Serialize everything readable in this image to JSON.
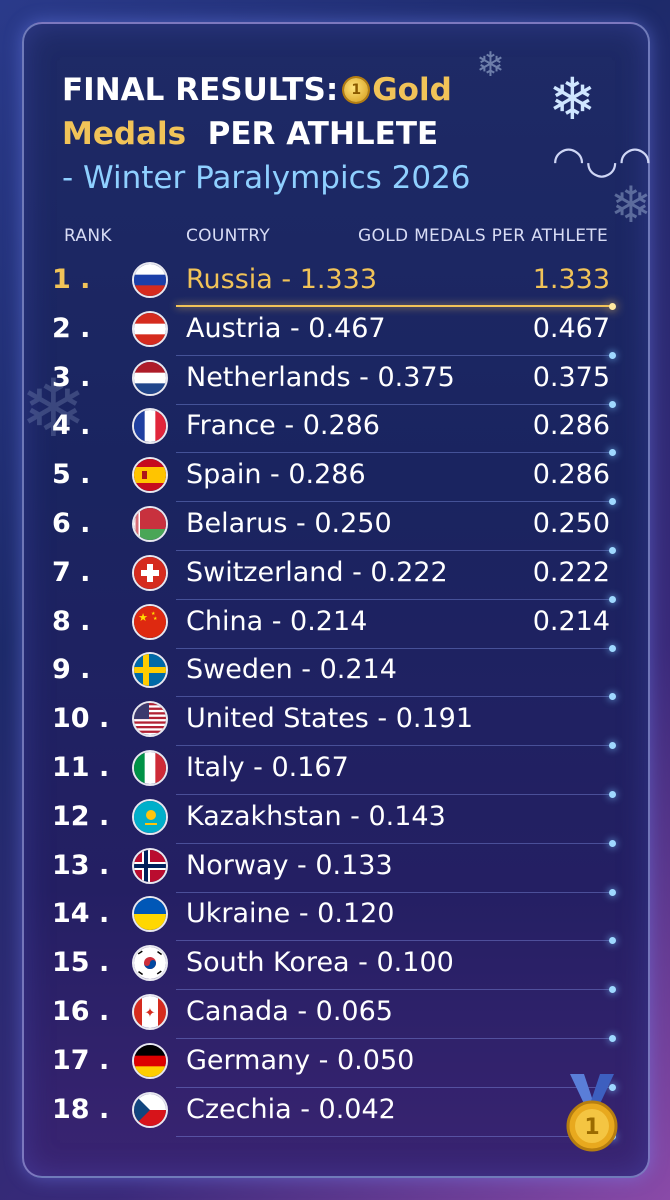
{
  "title": {
    "line1_prefix": "FINAL RESULTS:",
    "line1_gold": "Gold",
    "line2_gold": "Medals",
    "line2_suffix": "PER ATHLETE",
    "line3": "- Winter Paralympics 2026",
    "medal_glyph": "1"
  },
  "headers": {
    "rank": "RANK",
    "country": "COUNTRY",
    "value": "GOLD MEDALS PER ATHLETE"
  },
  "colors": {
    "gold": "#f1c358",
    "accent_blue": "#8fd0ff"
  },
  "rows": [
    {
      "rank": "1 .",
      "country": "Russia - 1.333",
      "value": "1.333",
      "flag": "russia-flag"
    },
    {
      "rank": "2 .",
      "country": "Austria - 0.467",
      "value": "0.467",
      "flag": "austria-flag"
    },
    {
      "rank": "3 .",
      "country": "Netherlands - 0.375",
      "value": "0.375",
      "flag": "netherlands-flag"
    },
    {
      "rank": "4 .",
      "country": "France - 0.286",
      "value": "0.286",
      "flag": "france-flag"
    },
    {
      "rank": "5 .",
      "country": "Spain - 0.286",
      "value": "0.286",
      "flag": "spain-flag"
    },
    {
      "rank": "6 .",
      "country": "Belarus - 0.250",
      "value": "0.250",
      "flag": "belarus-flag"
    },
    {
      "rank": "7 .",
      "country": "Switzerland - 0.222",
      "value": "0.222",
      "flag": "switzerland-flag"
    },
    {
      "rank": "8 .",
      "country": "China - 0.214",
      "value": "0.214",
      "flag": "china-flag"
    },
    {
      "rank": "9 .",
      "country": "Sweden - 0.214",
      "value": "",
      "flag": "sweden-flag"
    },
    {
      "rank": "10 .",
      "country": "United States - 0.191",
      "value": "",
      "flag": "usa-flag"
    },
    {
      "rank": "11 .",
      "country": "Italy - 0.167",
      "value": "",
      "flag": "italy-flag"
    },
    {
      "rank": "12 .",
      "country": "Kazakhstan - 0.143",
      "value": "",
      "flag": "kazakhstan-flag"
    },
    {
      "rank": "13 .",
      "country": "Norway - 0.133",
      "value": "",
      "flag": "norway-flag"
    },
    {
      "rank": "14 .",
      "country": "Ukraine - 0.120",
      "value": "",
      "flag": "ukraine-flag"
    },
    {
      "rank": "15 .",
      "country": "South Korea - 0.100",
      "value": "",
      "flag": "south-korea-flag"
    },
    {
      "rank": "16 .",
      "country": "Canada - 0.065",
      "value": "",
      "flag": "canada-flag"
    },
    {
      "rank": "17 .",
      "country": "Germany - 0.050",
      "value": "",
      "flag": "germany-flag"
    },
    {
      "rank": "18 .",
      "country": "Czechia - 0.042",
      "value": "",
      "flag": "czechia-flag"
    }
  ],
  "badge": {
    "glyph": "1",
    "icon": "gold-medal-icon"
  }
}
